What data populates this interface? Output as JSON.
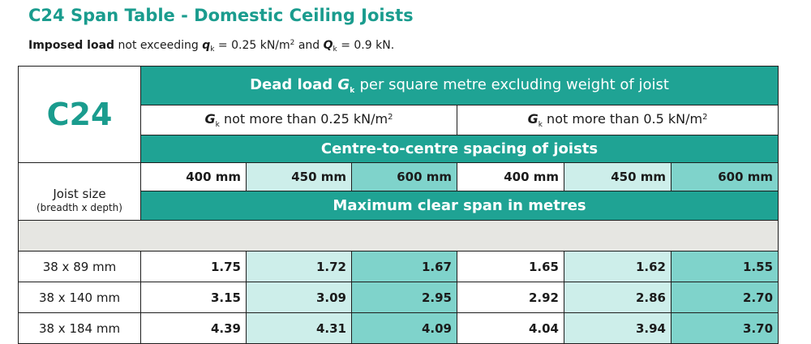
{
  "title": "C24 Span Table - Domestic Ceiling Joists",
  "subtitle": {
    "imposed_label": "Imposed load",
    "not_exceeding": "not exceeding",
    "q_symbol": "q",
    "q_subscript": "k",
    "q_value": "= 0.25 kN/m",
    "q_unit_sup": "2",
    "and_text": "and",
    "Q_symbol": "Q",
    "Q_subscript": "k",
    "Q_value": "= 0.9 kN."
  },
  "table": {
    "grade": "C24",
    "dead_load": {
      "bold": "Dead load",
      "symbol": "G",
      "subscript": "k",
      "rest": "per square metre excluding weight of joist"
    },
    "gk_groups": [
      {
        "symbol": "G",
        "subscript": "k",
        "text": "not more than 0.25  kN/m",
        "sup": "2"
      },
      {
        "symbol": "G",
        "subscript": "k",
        "text": "not more than 0.5 kN/m",
        "sup": "2"
      }
    ],
    "spacing_header": "Centre-to-centre spacing of joists",
    "spacings": [
      "400 mm",
      "450 mm",
      "600 mm",
      "400 mm",
      "450 mm",
      "600 mm"
    ],
    "joist_size_label": "Joist size",
    "joist_size_sub": "(breadth x depth)",
    "max_span_header": "Maximum clear span in metres",
    "rows": [
      {
        "size": "38 x 89 mm",
        "values": [
          "1.75",
          "1.72",
          "1.67",
          "1.65",
          "1.62",
          "1.55"
        ]
      },
      {
        "size": "38 x 140 mm",
        "values": [
          "3.15",
          "3.09",
          "2.95",
          "2.92",
          "2.86",
          "2.70"
        ]
      },
      {
        "size": "38 x 184 mm",
        "values": [
          "4.39",
          "4.31",
          "4.09",
          "4.04",
          "3.94",
          "3.70"
        ]
      }
    ]
  },
  "colors": {
    "teal": "#1fa394",
    "teal_mid": "#7fd3cb",
    "teal_light": "#cdeeea",
    "grey_band": "#e6e6e2",
    "title_color": "#1a9c8e"
  }
}
